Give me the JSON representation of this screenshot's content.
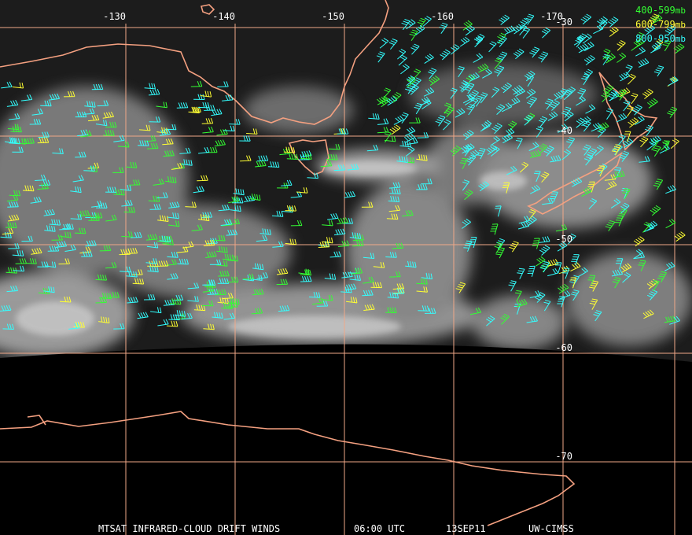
{
  "map": {
    "longitudes": [
      -130,
      -140,
      -150,
      -160,
      -170
    ],
    "latitudes": [
      -30,
      -40,
      -50,
      -60,
      -70
    ],
    "legend": [
      {
        "range": "400-599",
        "unit": "mb",
        "color": "#33ff33"
      },
      {
        "range": "600-799",
        "unit": "mb",
        "color": "#ffff33"
      },
      {
        "range": "800-950",
        "unit": "mb",
        "color": "#33ffff"
      }
    ],
    "footer": [
      "MTSAT INFRARED-CLOUD DRIFT WINDS",
      "06:00 UTC",
      "13SEP11",
      "UW-CIMSS"
    ]
  }
}
